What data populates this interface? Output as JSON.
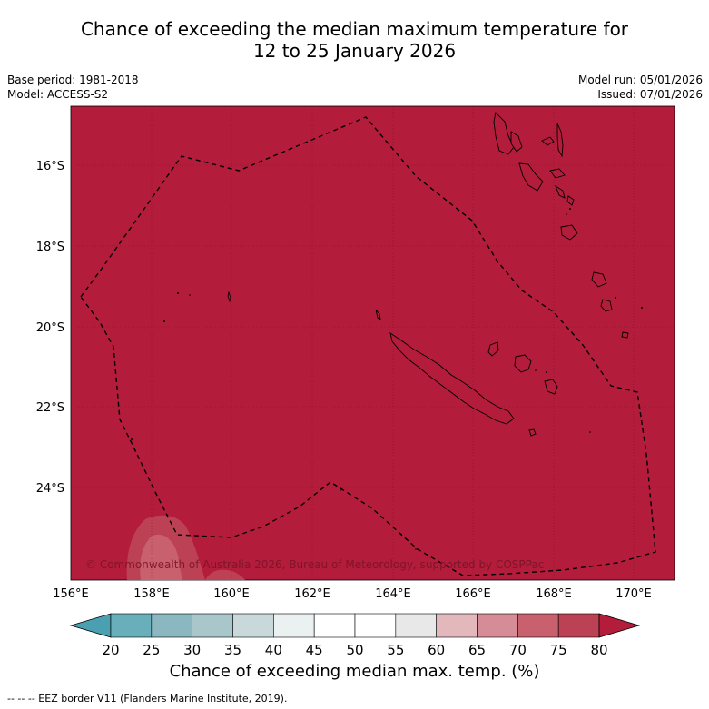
{
  "title": {
    "line1": "Chance of exceeding the median maximum temperature for",
    "line2": "12 to 25 January 2026"
  },
  "meta": {
    "base_period": "Base period: 1981-2018",
    "model": "Model: ACCESS-S2",
    "model_run": "Model run: 05/01/2026",
    "issued": "Issued: 07/01/2026"
  },
  "map": {
    "background_color": "#b31c3b",
    "lat_labels": [
      "16°S",
      "18°S",
      "20°S",
      "22°S",
      "24°S"
    ],
    "lon_labels": [
      "156°E",
      "158°E",
      "160°E",
      "162°E",
      "164°E",
      "166°E",
      "168°E",
      "170°E"
    ],
    "copyright": "© Commonwealth of Australia 2026, Bureau of Meteorology, supported by COSPPac"
  },
  "colorbar": {
    "ticks": [
      "20",
      "25",
      "30",
      "35",
      "40",
      "45",
      "50",
      "55",
      "60",
      "65",
      "70",
      "75",
      "80"
    ],
    "colors": [
      "#4aa0b0",
      "#69aebb",
      "#8ab7c0",
      "#a9c6cb",
      "#c8d8db",
      "#ebf0f1",
      "#ffffff",
      "#ffffff",
      "#e8e8e8",
      "#e2b8bd",
      "#d68c97",
      "#c8606e",
      "#bd4154",
      "#b31c3b"
    ],
    "label": "Chance of exceeding median max. temp. (%)"
  },
  "footer": {
    "eez_note": "--  --  -- EEZ border V11 (Flanders Marine Institute, 2019)."
  }
}
